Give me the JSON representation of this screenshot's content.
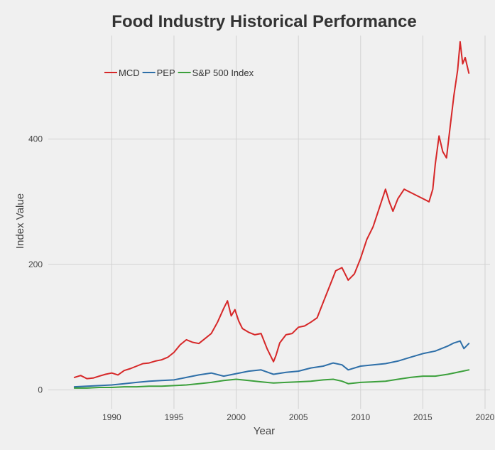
{
  "chart_data": {
    "type": "line",
    "title": "Food Industry Historical Performance",
    "xlabel": "Year",
    "ylabel": "Index Value",
    "xlim": [
      1984.9,
      2020.4
    ],
    "ylim": [
      -30,
      565
    ],
    "x_ticks": [
      1990,
      1995,
      2000,
      2005,
      2010,
      2015,
      2020
    ],
    "y_ticks": [
      0,
      200,
      400
    ],
    "grid": true,
    "legend_position": "top-left",
    "series": [
      {
        "name": "MCD",
        "color": "#d62728",
        "x": [
          1987.0,
          1987.5,
          1988.0,
          1988.5,
          1989.0,
          1989.5,
          1990.0,
          1990.5,
          1991.0,
          1991.5,
          1992.0,
          1992.5,
          1993.0,
          1993.5,
          1994.0,
          1994.5,
          1995.0,
          1995.5,
          1996.0,
          1996.5,
          1997.0,
          1997.5,
          1998.0,
          1998.5,
          1999.0,
          1999.3,
          1999.6,
          1999.9,
          2000.2,
          2000.5,
          2001.0,
          2001.5,
          2002.0,
          2002.5,
          2003.0,
          2003.2,
          2003.5,
          2004.0,
          2004.5,
          2005.0,
          2005.5,
          2006.0,
          2006.5,
          2007.0,
          2007.5,
          2008.0,
          2008.5,
          2009.0,
          2009.5,
          2010.0,
          2010.5,
          2011.0,
          2011.5,
          2012.0,
          2012.3,
          2012.6,
          2013.0,
          2013.5,
          2014.0,
          2014.5,
          2015.0,
          2015.5,
          2015.8,
          2016.0,
          2016.3,
          2016.6,
          2016.9,
          2017.2,
          2017.5,
          2017.8,
          2018.0,
          2018.2,
          2018.4,
          2018.7
        ],
        "values": [
          20,
          23,
          18,
          19,
          22,
          25,
          27,
          24,
          31,
          34,
          38,
          42,
          43,
          46,
          48,
          52,
          60,
          72,
          80,
          76,
          74,
          82,
          90,
          108,
          130,
          142,
          118,
          128,
          110,
          98,
          92,
          88,
          90,
          65,
          45,
          55,
          75,
          88,
          90,
          100,
          102,
          108,
          115,
          140,
          165,
          190,
          195,
          175,
          185,
          210,
          240,
          260,
          290,
          320,
          300,
          285,
          305,
          320,
          315,
          310,
          305,
          300,
          320,
          360,
          405,
          380,
          370,
          420,
          470,
          510,
          555,
          520,
          530,
          505
        ]
      },
      {
        "name": "PEP",
        "color": "#2e6fa8",
        "x": [
          1987.0,
          1988.0,
          1989.0,
          1990.0,
          1991.0,
          1992.0,
          1993.0,
          1994.0,
          1995.0,
          1996.0,
          1997.0,
          1998.0,
          1999.0,
          2000.0,
          2001.0,
          2002.0,
          2003.0,
          2004.0,
          2005.0,
          2006.0,
          2007.0,
          2007.8,
          2008.5,
          2009.0,
          2010.0,
          2011.0,
          2012.0,
          2013.0,
          2014.0,
          2015.0,
          2016.0,
          2017.0,
          2017.5,
          2018.0,
          2018.3,
          2018.7
        ],
        "values": [
          5,
          6,
          7,
          8,
          10,
          12,
          14,
          15,
          16,
          20,
          24,
          27,
          22,
          26,
          30,
          32,
          25,
          28,
          30,
          35,
          38,
          43,
          40,
          32,
          38,
          40,
          42,
          46,
          52,
          58,
          62,
          70,
          75,
          78,
          66,
          74
        ]
      },
      {
        "name": "S&P 500 Index",
        "color": "#3ca03c",
        "x": [
          1987.0,
          1988.0,
          1989.0,
          1990.0,
          1991.0,
          1992.0,
          1993.0,
          1994.0,
          1995.0,
          1996.0,
          1997.0,
          1998.0,
          1999.0,
          2000.0,
          2001.0,
          2002.0,
          2003.0,
          2004.0,
          2005.0,
          2006.0,
          2007.0,
          2007.8,
          2008.5,
          2009.0,
          2010.0,
          2011.0,
          2012.0,
          2013.0,
          2014.0,
          2015.0,
          2016.0,
          2017.0,
          2018.0,
          2018.7
        ],
        "values": [
          3,
          3,
          4,
          4,
          5,
          5,
          6,
          6,
          7,
          8,
          10,
          12,
          15,
          17,
          15,
          13,
          11,
          12,
          13,
          14,
          16,
          17,
          14,
          10,
          12,
          13,
          14,
          17,
          20,
          22,
          22,
          25,
          29,
          32
        ]
      }
    ]
  }
}
